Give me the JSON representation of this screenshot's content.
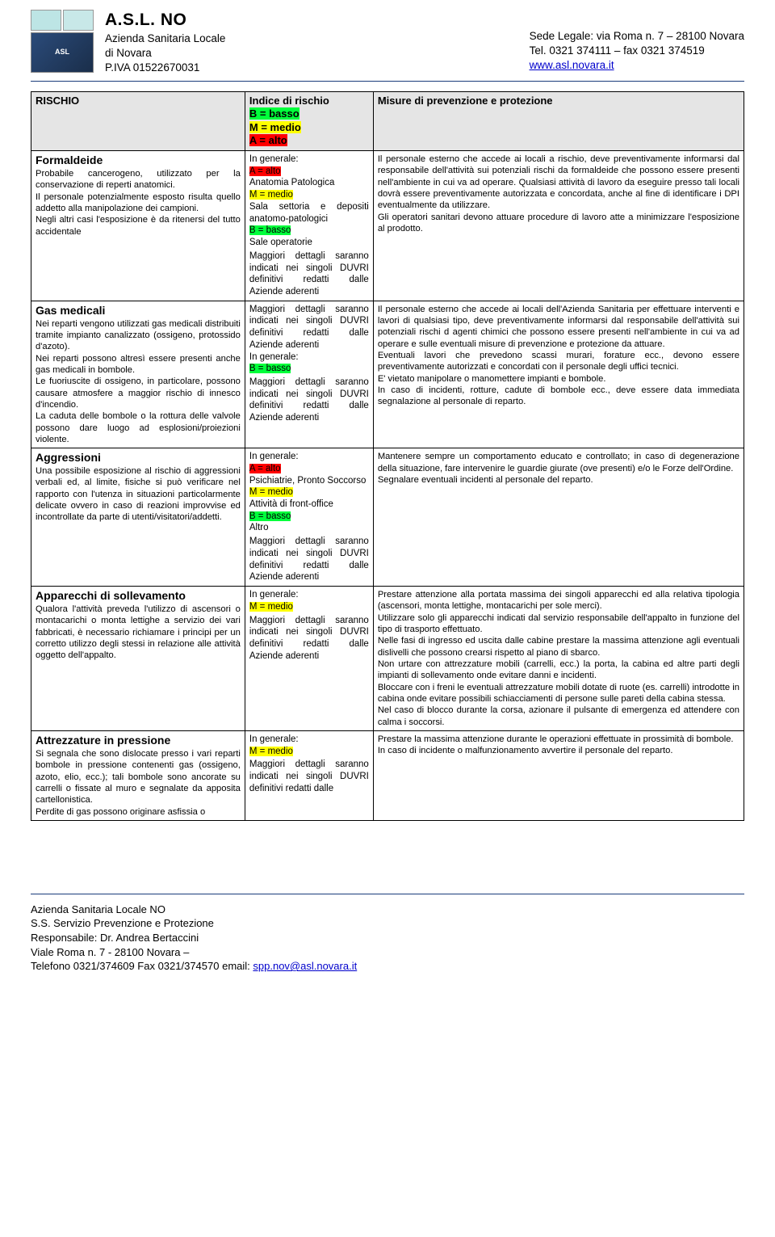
{
  "header": {
    "title": "A.S.L. NO",
    "line2": "Azienda Sanitaria Locale",
    "line3": "di Novara",
    "line4": "P.IVA 01522670031",
    "right1": "Sede Legale: via Roma n. 7 – 28100 Novara",
    "right2": "Tel. 0321 374111 – fax 0321 374519",
    "rightLink": "www.asl.novara.it"
  },
  "tableHeader": {
    "col1": "RISCHIO",
    "col2a": "Indice di rischio",
    "col2_b": "B = basso",
    "col2_m": "M = medio",
    "col2_a": "A = alto",
    "col3": "Misure di prevenzione e protezione"
  },
  "common": {
    "inGen": "In generale:",
    "maggiori": "Maggiori dettagli saranno indicati nei singoli DUVRI definitivi redatti dalle Aziende aderenti"
  },
  "rows": [
    {
      "title": "Formaldeide",
      "desc": "Probabile cancerogeno, utilizzato per la conservazione di reperti anatomici.\nIl personale potenzialmente esposto risulta quello addetto alla manipolazione dei campioni.\nNegli altri casi l'esposizione è da ritenersi del tutto accidentale",
      "col2_lines": [
        {
          "txt": "A = alto",
          "cls": "hl-red"
        },
        {
          "txt": "Anatomia Patologica",
          "cls": ""
        },
        {
          "txt": "M = medio",
          "cls": "hl-yellow"
        },
        {
          "txt": "Sala settoria e depositi anatomo-patologici",
          "cls": ""
        },
        {
          "txt": "B = basso",
          "cls": "hl-green"
        },
        {
          "txt": "Sale operatorie",
          "cls": ""
        }
      ],
      "col3": "Il personale esterno che accede ai locali a rischio, deve preventivamente informarsi dal responsabile dell'attività sui potenziali rischi da formaldeide che possono essere presenti nell'ambiente in cui va ad operare. Qualsiasi attività di lavoro da eseguire presso tali locali dovrà essere preventivamente autorizzata e concordata, anche al fine di identificare i DPI eventualmente da utilizzare.\nGli operatori sanitari devono attuare procedure di lavoro atte a minimizzare l'esposizione al prodotto."
    },
    {
      "title": "Gas medicali",
      "desc": "Nei reparti vengono utilizzati gas medicali distribuiti tramite impianto canalizzato (ossigeno, protossido d'azoto).\nNei reparti possono altresì essere presenti anche gas medicali in bombole.\nLe fuoriuscite di ossigeno, in particolare, possono causare atmosfere a maggior rischio di innesco d'incendio.\nLa caduta delle bombole o la rottura delle valvole possono dare luogo ad esplosioni/proiezioni violente.",
      "col2_lines": [
        {
          "txt": "B = basso",
          "cls": "hl-green"
        }
      ],
      "col3": "Il personale esterno che accede ai locali dell'Azienda Sanitaria per effettuare interventi e lavori di qualsiasi tipo, deve preventivamente informarsi dal responsabile dell'attività sui potenziali rischi d agenti chimici che possono essere presenti nell'ambiente in cui va ad operare e sulle eventuali misure di prevenzione e protezione da attuare.\nEventuali lavori che prevedono scassi murari, forature ecc., devono essere preventivamente autorizzati e concordati con il personale degli uffici tecnici.\nE' vietato manipolare o manomettere impianti e bombole.\nIn caso di incidenti, rotture, cadute di bombole ecc., deve essere data immediata segnalazione al personale di reparto."
    },
    {
      "title": "Aggressioni",
      "desc": "Una possibile esposizione al rischio di aggressioni verbali ed, al limite, fisiche si può verificare nel rapporto con l'utenza in situazioni particolarmente delicate ovvero in caso di reazioni improvvise ed incontrollate da parte di utenti/visitatori/addetti.",
      "col2_lines": [
        {
          "txt": "A = alto",
          "cls": "hl-red"
        },
        {
          "txt": "Psichiatrie, Pronto Soccorso",
          "cls": ""
        },
        {
          "txt": "M = medio",
          "cls": "hl-yellow"
        },
        {
          "txt": "Attività di front-office",
          "cls": ""
        },
        {
          "txt": "B = basso",
          "cls": "hl-green"
        },
        {
          "txt": "Altro",
          "cls": ""
        }
      ],
      "col3": "Mantenere sempre un comportamento educato e controllato; in caso di degenerazione della situazione, fare intervenire le guardie giurate (ove presenti) e/o le Forze dell'Ordine.\nSegnalare eventuali incidenti al personale del reparto."
    },
    {
      "title": "Apparecchi di sollevamento",
      "desc": "Qualora l'attività preveda l'utilizzo di ascensori o montacarichi o monta lettighe a servizio dei vari fabbricati, è necessario richiamare i principi per un corretto utilizzo degli stessi in relazione alle attività oggetto dell'appalto.",
      "col2_lines": [
        {
          "txt": "M = medio",
          "cls": "hl-yellow"
        }
      ],
      "col3": "Prestare attenzione alla portata massima dei singoli apparecchi ed alla relativa tipologia (ascensori, monta lettighe, montacarichi per sole merci).\nUtilizzare solo gli apparecchi indicati dal servizio responsabile dell'appalto in funzione del tipo di trasporto effettuato.\nNelle fasi di ingresso ed uscita dalle cabine prestare la massima attenzione agli eventuali dislivelli che possono crearsi rispetto al piano di sbarco.\nNon urtare con attrezzature mobili (carrelli, ecc.) la porta, la cabina ed altre parti degli impianti di sollevamento onde evitare danni e incidenti.\nBloccare con i freni le eventuali attrezzature mobili dotate di ruote (es. carrelli) introdotte in cabina onde evitare possibili schiacciamenti di persone sulle pareti della cabina stessa.\nNel caso di blocco durante la corsa, azionare il pulsante di emergenza ed attendere con calma i soccorsi."
    },
    {
      "title": "Attrezzature in pressione",
      "desc": "Si segnala che sono dislocate presso i vari reparti bombole in pressione contenenti gas (ossigeno, azoto, elio, ecc.); tali bombole sono ancorate su carrelli o fissate al muro e segnalate da apposita cartellonistica.\nPerdite di gas possono originare asfissia o",
      "col2_lines": [
        {
          "txt": "M = medio",
          "cls": "hl-yellow"
        }
      ],
      "col3": "Prestare la massima attenzione durante le operazioni effettuate in prossimità di bombole.\nIn caso di incidente o malfunzionamento avvertire il personale del reparto.",
      "noBottom": true
    }
  ],
  "footer": {
    "l1": "Azienda Sanitaria Locale NO",
    "l2": "S.S. Servizio Prevenzione e Protezione",
    "l3": "Responsabile: Dr. Andrea Bertaccini",
    "l4": "Viale Roma n. 7 - 28100 Novara –",
    "l5a": "Telefono 0321/374609 Fax 0321/374570  email: ",
    "l5link": "spp.nov@asl.novara.it"
  }
}
